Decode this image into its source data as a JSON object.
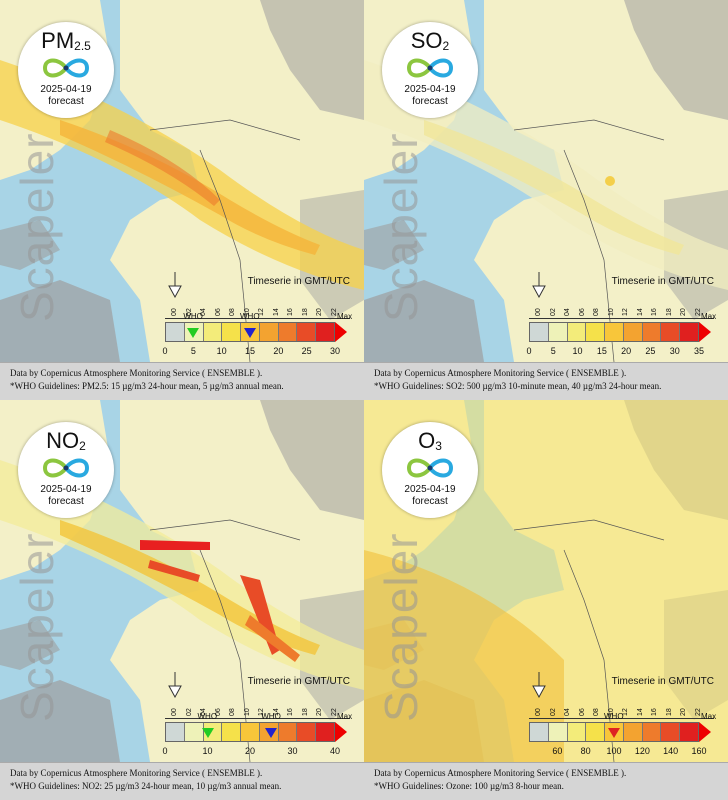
{
  "panels": [
    {
      "pollutant": "PM",
      "subscript": "2.5",
      "date": "2025-04-19",
      "forecast_label": "forecast",
      "watermark": "Scapeler",
      "timeserie_label": "Timeserie in GMT/UTC",
      "hours": [
        "00",
        "02",
        "04",
        "06",
        "08",
        "10",
        "12",
        "14",
        "16",
        "18",
        "20",
        "22"
      ],
      "scale_ticks": [
        "0",
        "5",
        "10",
        "15",
        "20",
        "25",
        "30"
      ],
      "scale_min": 0,
      "scale_max": 30,
      "who_markers": [
        {
          "label": "WHO",
          "value": 5,
          "color": "#22cc22"
        },
        {
          "label": "WHO",
          "value": 15,
          "color": "#2222cc"
        }
      ],
      "max_label": "Max",
      "footer_line1": "Data by Copernicus Atmosphere Monitoring Service ( ENSEMBLE ).",
      "footer_line2": "*WHO Guidelines: PM2.5: 15 µg/m3 24-hour mean, 5 µg/m3 annual mean."
    },
    {
      "pollutant": "SO",
      "subscript": "2",
      "date": "2025-04-19",
      "forecast_label": "forecast",
      "watermark": "Scapeler",
      "timeserie_label": "Timeserie in GMT/UTC",
      "hours": [
        "00",
        "02",
        "04",
        "06",
        "08",
        "10",
        "12",
        "14",
        "16",
        "18",
        "20",
        "22"
      ],
      "scale_ticks": [
        "0",
        "5",
        "10",
        "15",
        "20",
        "25",
        "30",
        "35"
      ],
      "scale_min": 0,
      "scale_max": 35,
      "who_markers": [],
      "max_label": "Max",
      "footer_line1": "Data by Copernicus Atmosphere Monitoring Service ( ENSEMBLE ).",
      "footer_line2": "*WHO Guidelines: SO2: 500 µg/m3 10-minute mean, 40 µg/m3 24-hour mean."
    },
    {
      "pollutant": "NO",
      "subscript": "2",
      "date": "2025-04-19",
      "forecast_label": "forecast",
      "watermark": "Scapeler",
      "timeserie_label": "Timeserie in GMT/UTC",
      "hours": [
        "00",
        "02",
        "04",
        "06",
        "08",
        "10",
        "12",
        "14",
        "16",
        "18",
        "20",
        "22"
      ],
      "scale_ticks": [
        "0",
        "10",
        "20",
        "30",
        "40"
      ],
      "scale_min": 0,
      "scale_max": 40,
      "who_markers": [
        {
          "label": "WHO",
          "value": 10,
          "color": "#22cc22"
        },
        {
          "label": "WHO",
          "value": 25,
          "color": "#2222cc"
        }
      ],
      "max_label": "Max",
      "footer_line1": "Data by Copernicus Atmosphere Monitoring Service ( ENSEMBLE ).",
      "footer_line2": "*WHO Guidelines: NO2: 25 µg/m3 24-hour mean, 10 µg/m3 annual mean."
    },
    {
      "pollutant": "O",
      "subscript": "3",
      "date": "2025-04-19",
      "forecast_label": "forecast",
      "watermark": "Scapeler",
      "timeserie_label": "Timeserie in GMT/UTC",
      "hours": [
        "00",
        "02",
        "04",
        "06",
        "08",
        "10",
        "12",
        "14",
        "16",
        "18",
        "20",
        "22"
      ],
      "scale_ticks": [
        "60",
        "80",
        "100",
        "120",
        "140",
        "160"
      ],
      "scale_min": 40,
      "scale_max": 160,
      "who_markers": [
        {
          "label": "WHO",
          "value": 100,
          "color": "#dd2222"
        }
      ],
      "max_label": "Max",
      "footer_line1": "Data by Copernicus Atmosphere Monitoring Service ( ENSEMBLE ).",
      "footer_line2": "*WHO Guidelines: Ozone: 100 µg/m3 8-hour mean."
    }
  ],
  "colors": {
    "sea": "#a8d4e6",
    "land_grey": "#9e9e9e",
    "pale": "#f3f0c8",
    "scale": [
      "#cfd8d6",
      "#eef2b8",
      "#f3ec7a",
      "#f5e14a",
      "#f8c63a",
      "#f3a330",
      "#ee7b2c",
      "#e84c27",
      "#e0201f"
    ]
  }
}
